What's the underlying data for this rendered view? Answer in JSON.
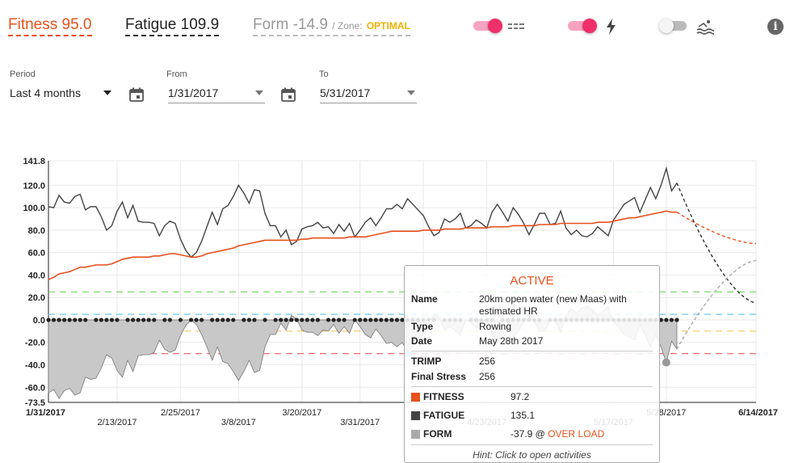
{
  "header": {
    "fitness": "Fitness 95.0",
    "fatigue": "Fatigue 109.9",
    "form": "Form -14.9",
    "zone_prefix": "/ Zone:",
    "zone_value": "OPTIMAL",
    "toggles": [
      {
        "name": "lines-toggle",
        "on": true,
        "icon": "dashed-lines-icon"
      },
      {
        "name": "power-toggle",
        "on": true,
        "icon": "lightning-icon"
      },
      {
        "name": "swim-toggle",
        "on": false,
        "icon": "swimming-icon"
      }
    ],
    "info_icon": "info-icon"
  },
  "filters": {
    "period_label": "Period",
    "period_value": "Last 4 months",
    "from_label": "From",
    "from_value": "1/31/2017",
    "to_label": "To",
    "to_value": "5/31/2017"
  },
  "chart_data": {
    "type": "line",
    "y_range": [
      -73.5,
      141.8
    ],
    "y_ticks": [
      "141.8",
      "120.0",
      "100.0",
      "80.0",
      "60.0",
      "40.0",
      "20.0",
      "0.0",
      "-20.0",
      "-40.0",
      "-60.0",
      "-73.5"
    ],
    "x_range": [
      "1/31/2017",
      "6/14/2017"
    ],
    "x_ticks_row1": [
      "1/31/2017",
      "2/25/2017",
      "3/20/2017",
      "4/",
      "5/28/2017",
      "6/14/2017"
    ],
    "x_ticks_row2": [
      "2/13/2017",
      "3/8/2017",
      "3/31/2017",
      "4/23/2017",
      "5/17/2017"
    ],
    "zone_lines": [
      {
        "y": 25,
        "color": "#6ccf5c"
      },
      {
        "y": 5,
        "color": "#6cc8ee"
      },
      {
        "y": -10,
        "color": "#f2c55c"
      },
      {
        "y": -30,
        "color": "#ef6b6b"
      }
    ],
    "series": [
      {
        "name": "FATIGUE",
        "color": "#444444",
        "values": [
          101,
          100,
          111,
          105,
          104,
          110,
          112,
          98,
          101,
          101,
          92,
          80,
          84,
          97,
          105,
          91,
          102,
          88,
          87,
          87,
          86,
          75,
          84,
          88,
          86,
          72,
          62,
          56,
          60,
          70,
          83,
          96,
          85,
          99,
          102,
          110,
          120,
          113,
          104,
          116,
          115,
          95,
          84,
          84,
          74,
          80,
          67,
          70,
          81,
          83,
          84,
          87,
          82,
          83,
          77,
          85,
          79,
          86,
          74,
          80,
          87,
          91,
          84,
          91,
          99,
          99,
          103,
          99,
          108,
          103,
          98,
          93,
          83,
          75,
          78,
          90,
          87,
          90,
          95,
          82,
          84,
          89,
          86,
          82,
          96,
          103,
          96,
          88,
          100,
          94,
          86,
          76,
          85,
          95,
          95,
          85,
          86,
          97,
          82,
          76,
          80,
          75,
          74,
          77,
          83,
          79,
          75,
          89,
          96,
          103,
          106,
          109,
          96,
          107,
          118,
          108,
          120,
          135,
          115,
          122
        ],
        "projection": {
          "end": 15
        }
      },
      {
        "name": "FITNESS",
        "color": "#e8501c",
        "values": [
          36,
          38,
          41,
          42,
          43,
          45,
          47,
          47,
          48,
          49,
          49,
          49,
          50,
          52,
          54,
          55,
          56,
          56,
          56,
          56,
          57,
          57,
          58,
          59,
          59,
          58,
          57,
          56,
          56,
          57,
          59,
          60,
          61,
          62,
          63,
          64,
          66,
          67,
          68,
          69,
          70,
          71,
          71,
          71,
          71,
          71,
          71,
          71,
          72,
          72,
          73,
          73,
          73,
          73,
          73,
          73,
          73,
          74,
          74,
          74,
          74,
          75,
          76,
          77,
          78,
          79,
          79,
          79,
          79,
          79,
          79,
          80,
          80,
          80,
          80,
          81,
          81,
          81,
          81,
          82,
          82,
          82,
          82,
          82,
          83,
          83,
          83,
          83,
          84,
          84,
          84,
          84,
          84,
          85,
          85,
          85,
          85,
          86,
          86,
          86,
          86,
          86,
          86,
          86,
          87,
          87,
          87,
          88,
          89,
          90,
          91,
          91,
          92,
          93,
          94,
          95,
          96,
          97,
          96,
          96
        ],
        "projection": {
          "end": 68
        }
      },
      {
        "name": "FORM",
        "color": "#999999",
        "values": [
          -65,
          -62,
          -70,
          -63,
          -61,
          -67,
          -65,
          -51,
          -53,
          -52,
          -43,
          -31,
          -34,
          -45,
          -51,
          -36,
          -46,
          -32,
          -31,
          -31,
          -29,
          -18,
          -26,
          -29,
          -27,
          -14,
          -5,
          0,
          -4,
          -13,
          -24,
          -36,
          -24,
          -37,
          -39,
          -46,
          -54,
          -46,
          -36,
          -47,
          -45,
          -24,
          -13,
          -13,
          -3,
          -9,
          4,
          1,
          -9,
          -11,
          -11,
          -14,
          -9,
          -10,
          -4,
          -12,
          -6,
          -12,
          0,
          -6,
          -13,
          -16,
          -8,
          -14,
          -21,
          -20,
          -24,
          -20,
          -29,
          -24,
          -19,
          -13,
          -3,
          5,
          3,
          -9,
          -6,
          -9,
          -14,
          0,
          -2,
          -7,
          -4,
          0,
          -13,
          -20,
          -13,
          -5,
          -16,
          -10,
          -2,
          8,
          -1,
          -10,
          -10,
          0,
          -1,
          -11,
          4,
          10,
          6,
          11,
          12,
          9,
          4,
          8,
          12,
          -1,
          -7,
          -13,
          -15,
          -18,
          -4,
          -14,
          -24,
          -13,
          -24,
          -38,
          -19,
          -26
        ],
        "projection": {
          "end": 53
        }
      }
    ],
    "dot_days_on_zero": [
      0,
      1,
      2,
      3,
      4,
      5,
      6,
      7,
      9,
      10,
      11,
      12,
      13,
      15,
      16,
      17,
      18,
      19,
      20,
      22,
      23,
      25,
      27,
      28,
      29,
      31,
      32,
      33,
      34,
      35,
      37,
      38,
      39,
      41,
      43,
      44,
      45,
      46,
      47,
      48,
      49,
      50,
      51,
      53,
      54,
      55,
      56,
      58,
      59,
      60,
      61,
      62,
      63,
      64,
      65,
      66,
      67,
      68,
      69,
      70,
      71,
      72,
      73,
      75,
      76,
      77,
      78,
      80,
      81,
      82,
      83,
      84,
      86,
      87,
      88,
      89,
      90,
      91,
      92,
      93,
      95,
      96,
      97,
      98,
      99,
      100,
      101,
      102,
      103,
      104,
      105,
      106,
      107,
      108,
      109,
      110,
      111,
      112,
      113,
      114,
      115,
      116,
      117,
      118,
      119
    ],
    "highlight": {
      "label": "5/28/2017",
      "form": -37.9
    }
  },
  "tooltip": {
    "title": "ACTIVE",
    "name_k": "Name",
    "name_v": "20km open water (new Maas) with estimated HR",
    "type_k": "Type",
    "type_v": "Rowing",
    "date_k": "Date",
    "date_v": "May 28th 2017",
    "trimp_k": "TRIMP",
    "trimp_v": "256",
    "stress_k": "Final Stress",
    "stress_v": "256",
    "fitness_k": "FITNESS",
    "fitness_v": "97.2",
    "fitness_color": "#e8501c",
    "fatigue_k": "FATIGUE",
    "fatigue_v": "135.1",
    "fatigue_color": "#444444",
    "form_k": "FORM",
    "form_v": "-37.9 @",
    "form_zone": "OVER LOAD",
    "form_color": "#aaaaaa",
    "hint": "Hint: Click to open activities"
  }
}
